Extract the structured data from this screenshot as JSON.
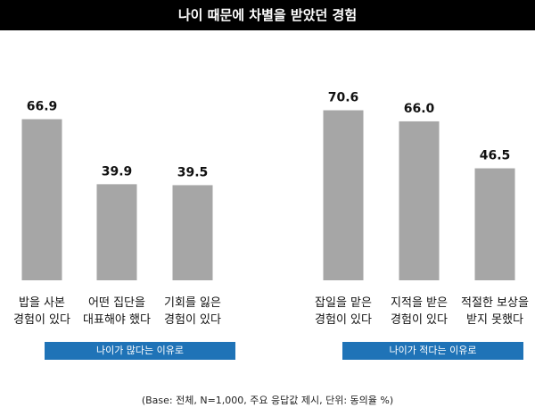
{
  "title": "나이 때문에 차별을 받았던 경험",
  "footnote": "(Base: 전체, N=1,000, 주요 응답값 제시, 단위: 동의율 %)",
  "colors": {
    "bar": "#a6a6a6",
    "group_box": "#1f73b7",
    "title_bg": "#000000"
  },
  "chart_data": {
    "type": "bar",
    "title": "나이 때문에 차별을 받았던 경험",
    "ylim": [
      0,
      80
    ],
    "grid": false,
    "groups": [
      {
        "label": "나이가 많다는 이유로",
        "categories": [
          {
            "lines": [
              "밥을 사본",
              "경험이 있다"
            ],
            "value": 66.9,
            "value_label": "66.9"
          },
          {
            "lines": [
              "어떤 집단을",
              "대표해야 했다"
            ],
            "value": 39.9,
            "value_label": "39.9"
          },
          {
            "lines": [
              "기회를 잃은",
              "경험이 있다"
            ],
            "value": 39.5,
            "value_label": "39.5"
          }
        ]
      },
      {
        "label": "나이가 적다는 이유로",
        "categories": [
          {
            "lines": [
              "잡일을 맡은",
              "경험이 있다"
            ],
            "value": 70.6,
            "value_label": "70.6"
          },
          {
            "lines": [
              "지적을 받은",
              "경험이 있다"
            ],
            "value": 66.0,
            "value_label": "66.0"
          },
          {
            "lines": [
              "적절한 보상을",
              "받지 못했다"
            ],
            "value": 46.5,
            "value_label": "46.5"
          }
        ]
      }
    ]
  }
}
